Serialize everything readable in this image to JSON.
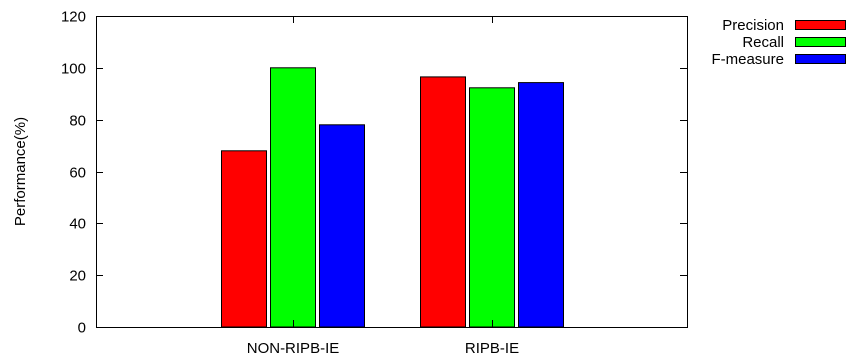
{
  "chart_data": {
    "type": "bar",
    "title": "",
    "xlabel": "",
    "ylabel": "Performance(%)",
    "ylim": [
      0,
      120
    ],
    "yticks": [
      0,
      20,
      40,
      60,
      80,
      100,
      120
    ],
    "categories": [
      "NON-RIPB-IE",
      "RIPB-IE"
    ],
    "series": [
      {
        "name": "Precision",
        "color": "#ff0000",
        "values": [
          68,
          96.5
        ]
      },
      {
        "name": "Recall",
        "color": "#00ff00",
        "values": [
          100,
          92.3
        ]
      },
      {
        "name": "F-measure",
        "color": "#0000ff",
        "values": [
          78,
          94.3
        ]
      }
    ],
    "grid": false,
    "legend": "top-right, outside plot"
  }
}
